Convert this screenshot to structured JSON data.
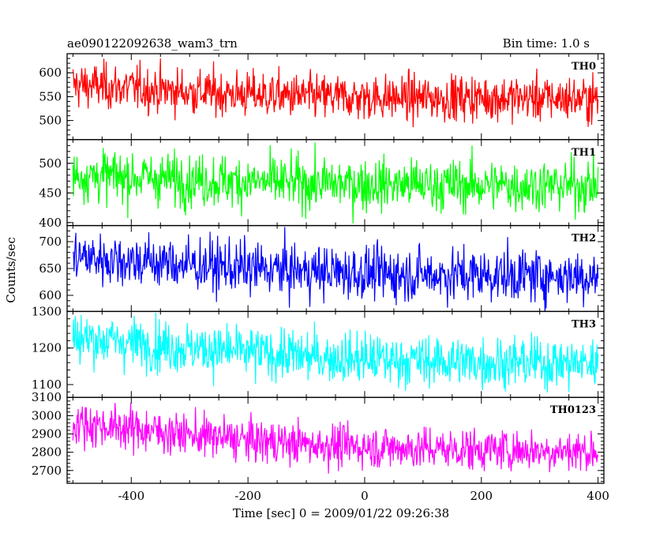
{
  "header": {
    "title": "ae090122092638_wam3_trn",
    "bin_time": "Bin time: 1.0 s"
  },
  "chart_data": {
    "type": "line",
    "title": "ae090122092638_wam3_trn",
    "subtitle": "Bin time: 1.0 s",
    "xlabel": "Time [sec] 0 = 2009/01/22 09:26:38",
    "ylabel": "Counts/sec",
    "xlim": [
      -510,
      410
    ],
    "x_start": -500,
    "x_end": 400,
    "x_step": 1,
    "x_ticks": [
      -400,
      -200,
      0,
      200,
      400
    ],
    "grid": false,
    "panels": [
      {
        "name": "TH0",
        "color": "#ff0000",
        "ylim": [
          460,
          640
        ],
        "y_ticks": [
          500,
          550,
          600
        ],
        "series": [
          {
            "x": -500,
            "y": 575
          },
          {
            "x": -400,
            "y": 568
          },
          {
            "x": -300,
            "y": 560
          },
          {
            "x": -200,
            "y": 555
          },
          {
            "x": -100,
            "y": 550
          },
          {
            "x": 0,
            "y": 548
          },
          {
            "x": 100,
            "y": 547
          },
          {
            "x": 200,
            "y": 548
          },
          {
            "x": 300,
            "y": 547
          },
          {
            "x": 400,
            "y": 545
          }
        ],
        "noise_sd": 24
      },
      {
        "name": "TH1",
        "color": "#00ff00",
        "ylim": [
          395,
          540
        ],
        "y_ticks": [
          400,
          450,
          500
        ],
        "series": [
          {
            "x": -500,
            "y": 480
          },
          {
            "x": -400,
            "y": 477
          },
          {
            "x": -300,
            "y": 472
          },
          {
            "x": -200,
            "y": 469
          },
          {
            "x": -100,
            "y": 466
          },
          {
            "x": 0,
            "y": 465
          },
          {
            "x": 100,
            "y": 464
          },
          {
            "x": 200,
            "y": 463
          },
          {
            "x": 300,
            "y": 463
          },
          {
            "x": 400,
            "y": 462
          }
        ],
        "noise_sd": 22
      },
      {
        "name": "TH2",
        "color": "#0000ff",
        "ylim": [
          570,
          730
        ],
        "y_ticks": [
          600,
          650,
          700
        ],
        "series": [
          {
            "x": -500,
            "y": 672
          },
          {
            "x": -400,
            "y": 665
          },
          {
            "x": -300,
            "y": 657
          },
          {
            "x": -200,
            "y": 650
          },
          {
            "x": -100,
            "y": 645
          },
          {
            "x": 0,
            "y": 641
          },
          {
            "x": 100,
            "y": 639
          },
          {
            "x": 200,
            "y": 638
          },
          {
            "x": 300,
            "y": 637
          },
          {
            "x": 400,
            "y": 636
          }
        ],
        "noise_sd": 25
      },
      {
        "name": "TH3",
        "color": "#00ffff",
        "ylim": [
          1065,
          1300
        ],
        "y_ticks": [
          1100,
          1200,
          1300
        ],
        "series": [
          {
            "x": -500,
            "y": 1230
          },
          {
            "x": -400,
            "y": 1215
          },
          {
            "x": -300,
            "y": 1200
          },
          {
            "x": -200,
            "y": 1188
          },
          {
            "x": -100,
            "y": 1177
          },
          {
            "x": 0,
            "y": 1170
          },
          {
            "x": 100,
            "y": 1165
          },
          {
            "x": 200,
            "y": 1162
          },
          {
            "x": 300,
            "y": 1160
          },
          {
            "x": 400,
            "y": 1158
          }
        ],
        "noise_sd": 35
      },
      {
        "name": "TH0123",
        "color": "#ff00ff",
        "ylim": [
          2630,
          3100
        ],
        "y_ticks": [
          2700,
          2800,
          2900,
          3000,
          3100
        ],
        "series": [
          {
            "x": -500,
            "y": 2960
          },
          {
            "x": -400,
            "y": 2930
          },
          {
            "x": -300,
            "y": 2895
          },
          {
            "x": -200,
            "y": 2865
          },
          {
            "x": -100,
            "y": 2845
          },
          {
            "x": 0,
            "y": 2830
          },
          {
            "x": 100,
            "y": 2820
          },
          {
            "x": 200,
            "y": 2815
          },
          {
            "x": 300,
            "y": 2810
          },
          {
            "x": 400,
            "y": 2805
          }
        ],
        "noise_sd": 58
      }
    ]
  }
}
